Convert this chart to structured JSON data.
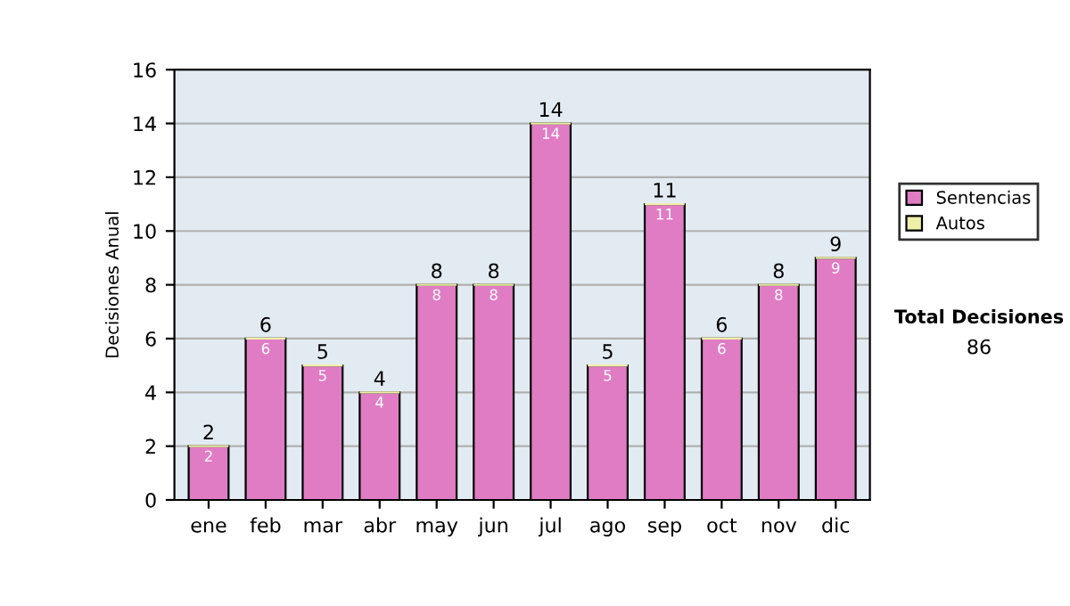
{
  "chart_data": {
    "type": "bar",
    "ylabel": "Decisiones Anual",
    "categories": [
      "ene",
      "feb",
      "mar",
      "abr",
      "may",
      "jun",
      "jul",
      "ago",
      "sep",
      "oct",
      "nov",
      "dic"
    ],
    "series": [
      {
        "name": "Sentencias",
        "color": "#e07cc4",
        "values": [
          2,
          6,
          5,
          4,
          8,
          8,
          14,
          5,
          11,
          6,
          8,
          9
        ],
        "value_labels": [
          "2",
          "6",
          "5",
          "4",
          "8",
          "8",
          "14",
          "5",
          "11",
          "6",
          "8",
          "9"
        ]
      },
      {
        "name": "Autos",
        "color": "#eef0a8",
        "values": [
          0,
          0,
          0,
          0,
          0,
          0,
          0,
          0,
          0,
          0,
          0,
          0
        ]
      }
    ],
    "stacked": true,
    "totals": [
      "2",
      "6",
      "5",
      "4",
      "8",
      "8",
      "14",
      "5",
      "11",
      "6",
      "8",
      "9"
    ],
    "ylim": [
      0,
      16
    ],
    "yticks": [
      0,
      2,
      4,
      6,
      8,
      10,
      12,
      14,
      16
    ],
    "grid": "y",
    "legend": "right",
    "annotations": [
      "Total Decisiones",
      "86"
    ]
  }
}
